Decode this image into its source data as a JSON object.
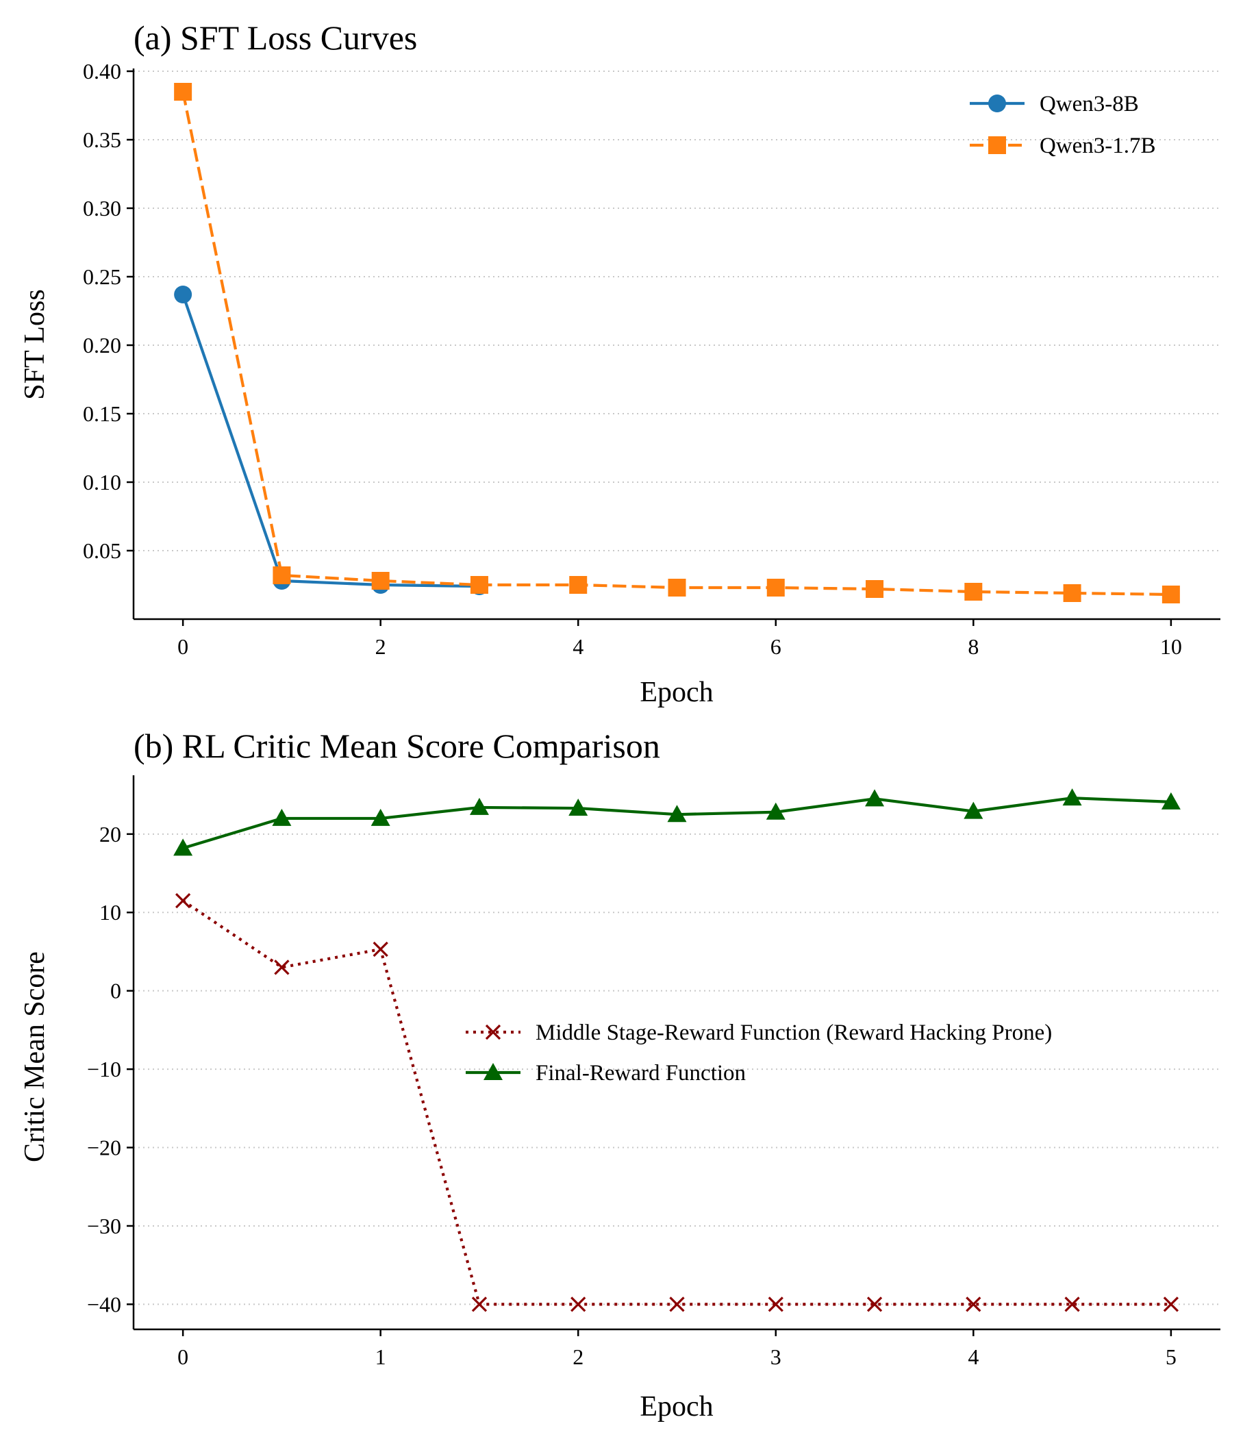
{
  "chart_data": [
    {
      "type": "line",
      "title": "(a) SFT Loss Curves",
      "xlabel": "Epoch",
      "ylabel": "SFT Loss",
      "xlim": [
        -0.5,
        10.5
      ],
      "ylim": [
        0.0,
        0.402
      ],
      "xticks": [
        0,
        2,
        4,
        6,
        8,
        10
      ],
      "xtick_labels": [
        "0",
        "2",
        "4",
        "6",
        "8",
        "10"
      ],
      "yticks": [
        0.05,
        0.1,
        0.15,
        0.2,
        0.25,
        0.3,
        0.35,
        0.4
      ],
      "ytick_labels": [
        "0.05",
        "0.10",
        "0.15",
        "0.20",
        "0.25",
        "0.30",
        "0.35",
        "0.40"
      ],
      "grid": "horizontal dotted",
      "legend_position": "top-right",
      "series": [
        {
          "name": "Qwen3-8B",
          "color": "#1f77b4",
          "line_style": "solid",
          "marker": "circle",
          "x": [
            0,
            1,
            2,
            3
          ],
          "y": [
            0.237,
            0.028,
            0.025,
            0.024
          ]
        },
        {
          "name": "Qwen3-1.7B",
          "color": "#ff7f0e",
          "line_style": "dashed",
          "marker": "square",
          "x": [
            0,
            1,
            2,
            3,
            4,
            5,
            6,
            7,
            8,
            9,
            10
          ],
          "y": [
            0.385,
            0.032,
            0.028,
            0.025,
            0.025,
            0.023,
            0.023,
            0.022,
            0.02,
            0.019,
            0.018
          ]
        }
      ]
    },
    {
      "type": "line",
      "title": "(b) RL Critic Mean Score Comparison",
      "xlabel": "Epoch",
      "ylabel": "Critic Mean Score",
      "xlim": [
        -0.25,
        5.25
      ],
      "ylim": [
        -43.2,
        27.5
      ],
      "xticks": [
        0,
        1,
        2,
        3,
        4,
        5
      ],
      "xtick_labels": [
        "0",
        "1",
        "2",
        "3",
        "4",
        "5"
      ],
      "yticks": [
        -40,
        -30,
        -20,
        -10,
        0,
        10,
        20
      ],
      "ytick_labels": [
        "−40",
        "−30",
        "−20",
        "−10",
        "0",
        "10",
        "20"
      ],
      "grid": "horizontal dotted",
      "legend_position": "center-right",
      "series": [
        {
          "name": "Middle Stage-Reward Function (Reward Hacking Prone)",
          "color": "#8b0000",
          "line_style": "dotted",
          "marker": "x",
          "x": [
            0,
            0.5,
            1,
            1.5,
            2,
            2.5,
            3,
            3.5,
            4,
            4.5,
            5
          ],
          "y": [
            11.5,
            3.0,
            5.3,
            -40,
            -40,
            -40,
            -40,
            -40,
            -40,
            -40,
            -40
          ]
        },
        {
          "name": "Final-Reward Function",
          "color": "#006400",
          "line_style": "solid",
          "marker": "triangle",
          "x": [
            0,
            0.5,
            1,
            1.5,
            2,
            2.5,
            3,
            3.5,
            4,
            4.5,
            5
          ],
          "y": [
            18.2,
            22.0,
            22.0,
            23.4,
            23.3,
            22.5,
            22.8,
            24.5,
            22.9,
            24.6,
            24.1
          ]
        }
      ]
    }
  ]
}
